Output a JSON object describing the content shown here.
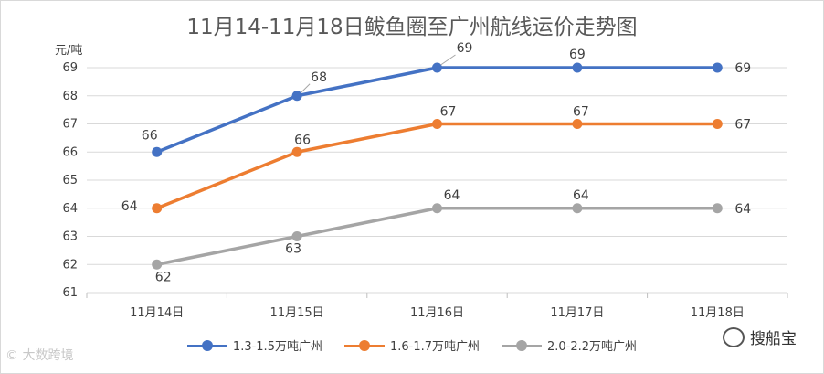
{
  "chart_data": {
    "type": "line",
    "title": "11月14-11月18日鲅鱼圈至广州航线运价走势图",
    "ylabel": "元/吨",
    "xlabel": "",
    "categories": [
      "11月14日",
      "11月15日",
      "11月16日",
      "11月17日",
      "11月18日"
    ],
    "ylim": [
      61,
      69
    ],
    "yticks": [
      "61",
      "62",
      "63",
      "64",
      "65",
      "66",
      "67",
      "68",
      "69"
    ],
    "grid": true,
    "legend_position": "bottom",
    "series": [
      {
        "name": "1.3-1.5万吨广州",
        "values": [
          66,
          68,
          69,
          69,
          69
        ],
        "labels": [
          "66",
          "68",
          "69",
          "69",
          "69"
        ],
        "color": "#4472c4"
      },
      {
        "name": "1.6-1.7万吨广州",
        "values": [
          64,
          66,
          67,
          67,
          67
        ],
        "labels": [
          "64",
          "66",
          "67",
          "67",
          "67"
        ],
        "color": "#ed7d31"
      },
      {
        "name": "2.0-2.2万吨广州",
        "values": [
          62,
          63,
          64,
          64,
          64
        ],
        "labels": [
          "62",
          "63",
          "64",
          "64",
          "64"
        ],
        "color": "#a5a5a5"
      }
    ]
  },
  "watermarks": {
    "left": "© 大数跨境",
    "right": "搜船宝",
    "right_icon": "wechat-icon"
  }
}
